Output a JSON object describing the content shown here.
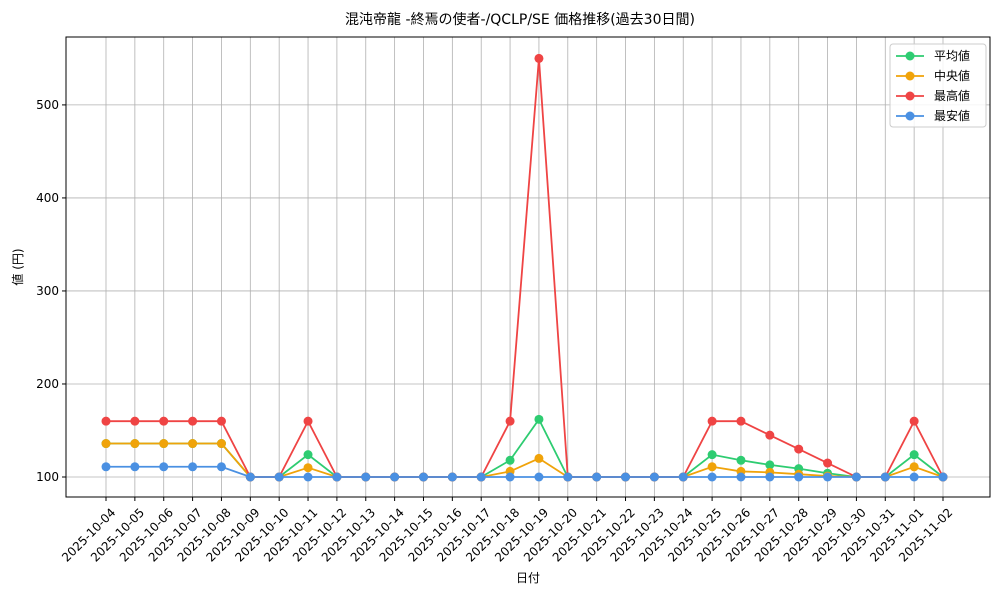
{
  "chart_data": {
    "type": "line",
    "title": "混沌帝龍 -終焉の使者-/QCLP/SE 価格推移(過去30日間)",
    "x_label": "日付",
    "y_label": "値 (円)",
    "categories": [
      "2025-10-04",
      "2025-10-05",
      "2025-10-06",
      "2025-10-07",
      "2025-10-08",
      "2025-10-09",
      "2025-10-10",
      "2025-10-11",
      "2025-10-12",
      "2025-10-13",
      "2025-10-14",
      "2025-10-15",
      "2025-10-16",
      "2025-10-17",
      "2025-10-18",
      "2025-10-19",
      "2025-10-20",
      "2025-10-21",
      "2025-10-22",
      "2025-10-23",
      "2025-10-24",
      "2025-10-25",
      "2025-10-26",
      "2025-10-27",
      "2025-10-28",
      "2025-10-29",
      "2025-10-30",
      "2025-10-31",
      "2025-11-01",
      "2025-11-02"
    ],
    "series": [
      {
        "name": "平均値",
        "color": "#2ecc71",
        "values": [
          136,
          136,
          136,
          136,
          136,
          100,
          100,
          124,
          100,
          100,
          100,
          100,
          100,
          100,
          118,
          162,
          100,
          100,
          100,
          100,
          100,
          124,
          118,
          113,
          109,
          104,
          100,
          100,
          124,
          100
        ]
      },
      {
        "name": "中央値",
        "color": "#f0a30a",
        "values": [
          136,
          136,
          136,
          136,
          136,
          100,
          100,
          110,
          100,
          100,
          100,
          100,
          100,
          100,
          106,
          120,
          100,
          100,
          100,
          100,
          100,
          111,
          106,
          105,
          103,
          101,
          100,
          100,
          111,
          100
        ]
      },
      {
        "name": "最高値",
        "color": "#ef4444",
        "values": [
          160,
          160,
          160,
          160,
          160,
          100,
          100,
          160,
          100,
          100,
          100,
          100,
          100,
          100,
          160,
          550,
          100,
          100,
          100,
          100,
          100,
          160,
          160,
          145,
          130,
          115,
          100,
          100,
          160,
          100
        ]
      },
      {
        "name": "最安値",
        "color": "#4a90e2",
        "values": [
          111,
          111,
          111,
          111,
          111,
          100,
          100,
          100,
          100,
          100,
          100,
          100,
          100,
          100,
          100,
          100,
          100,
          100,
          100,
          100,
          100,
          100,
          100,
          100,
          100,
          100,
          100,
          100,
          100,
          100
        ]
      }
    ],
    "ylim": [
      78.5,
      573
    ],
    "yticks": [
      100,
      200,
      300,
      400,
      500
    ],
    "grid": true,
    "legend": "upper-right"
  }
}
